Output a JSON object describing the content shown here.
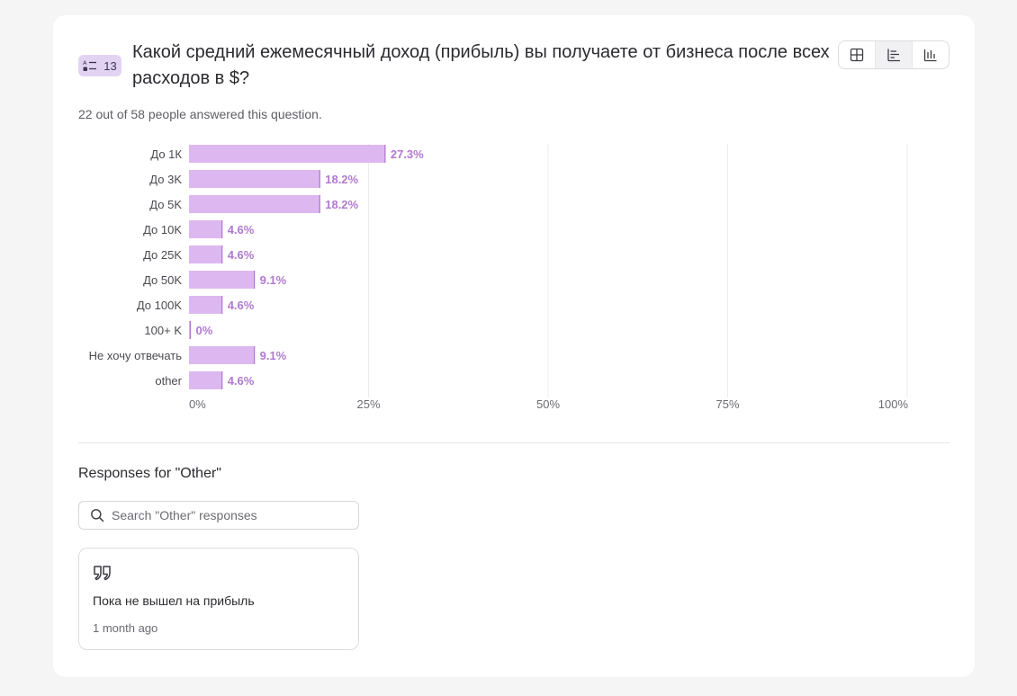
{
  "question": {
    "number": "13",
    "type_icon": "choice-list-icon",
    "title": "Какой средний ежемесячный доход (прибыль) вы получаете от бизнеса после всех расходов в $?",
    "answered_text": "22 out of 58 people answered this question."
  },
  "view_toggle": [
    {
      "icon": "grid-icon",
      "active": false
    },
    {
      "icon": "horizontal-bar-chart-icon",
      "active": true
    },
    {
      "icon": "vertical-bar-chart-icon",
      "active": false
    }
  ],
  "colors": {
    "bar_fill": "#ddb8f0",
    "bar_edge": "#b07ad0",
    "value_label": "#b07ad0",
    "badge_bg": "#e3d3f3",
    "gridline": "#ececf0"
  },
  "chart_data": {
    "type": "bar",
    "orientation": "horizontal",
    "categories": [
      "До 1К",
      "До 3K",
      "До 5K",
      "До 10K",
      "До 25K",
      "До 50K",
      "До 100K",
      "100+ K",
      "Не хочу отвечать",
      "other"
    ],
    "values": [
      27.3,
      18.2,
      18.2,
      4.6,
      4.6,
      9.1,
      4.6,
      0,
      9.1,
      4.6
    ],
    "value_labels": [
      "27.3%",
      "18.2%",
      "18.2%",
      "4.6%",
      "4.6%",
      "9.1%",
      "4.6%",
      "0%",
      "9.1%",
      "4.6%"
    ],
    "x_ticks": [
      0,
      25,
      50,
      75,
      100
    ],
    "x_tick_labels": [
      "0%",
      "25%",
      "50%",
      "75%",
      "100%"
    ],
    "xlim": [
      0,
      100
    ],
    "grid": true
  },
  "other_responses": {
    "title": "Responses for \"Other\"",
    "search_placeholder": "Search \"Other\" responses",
    "items": [
      {
        "text": "Пока не вышел на прибыль",
        "time": "1 month ago"
      }
    ]
  }
}
